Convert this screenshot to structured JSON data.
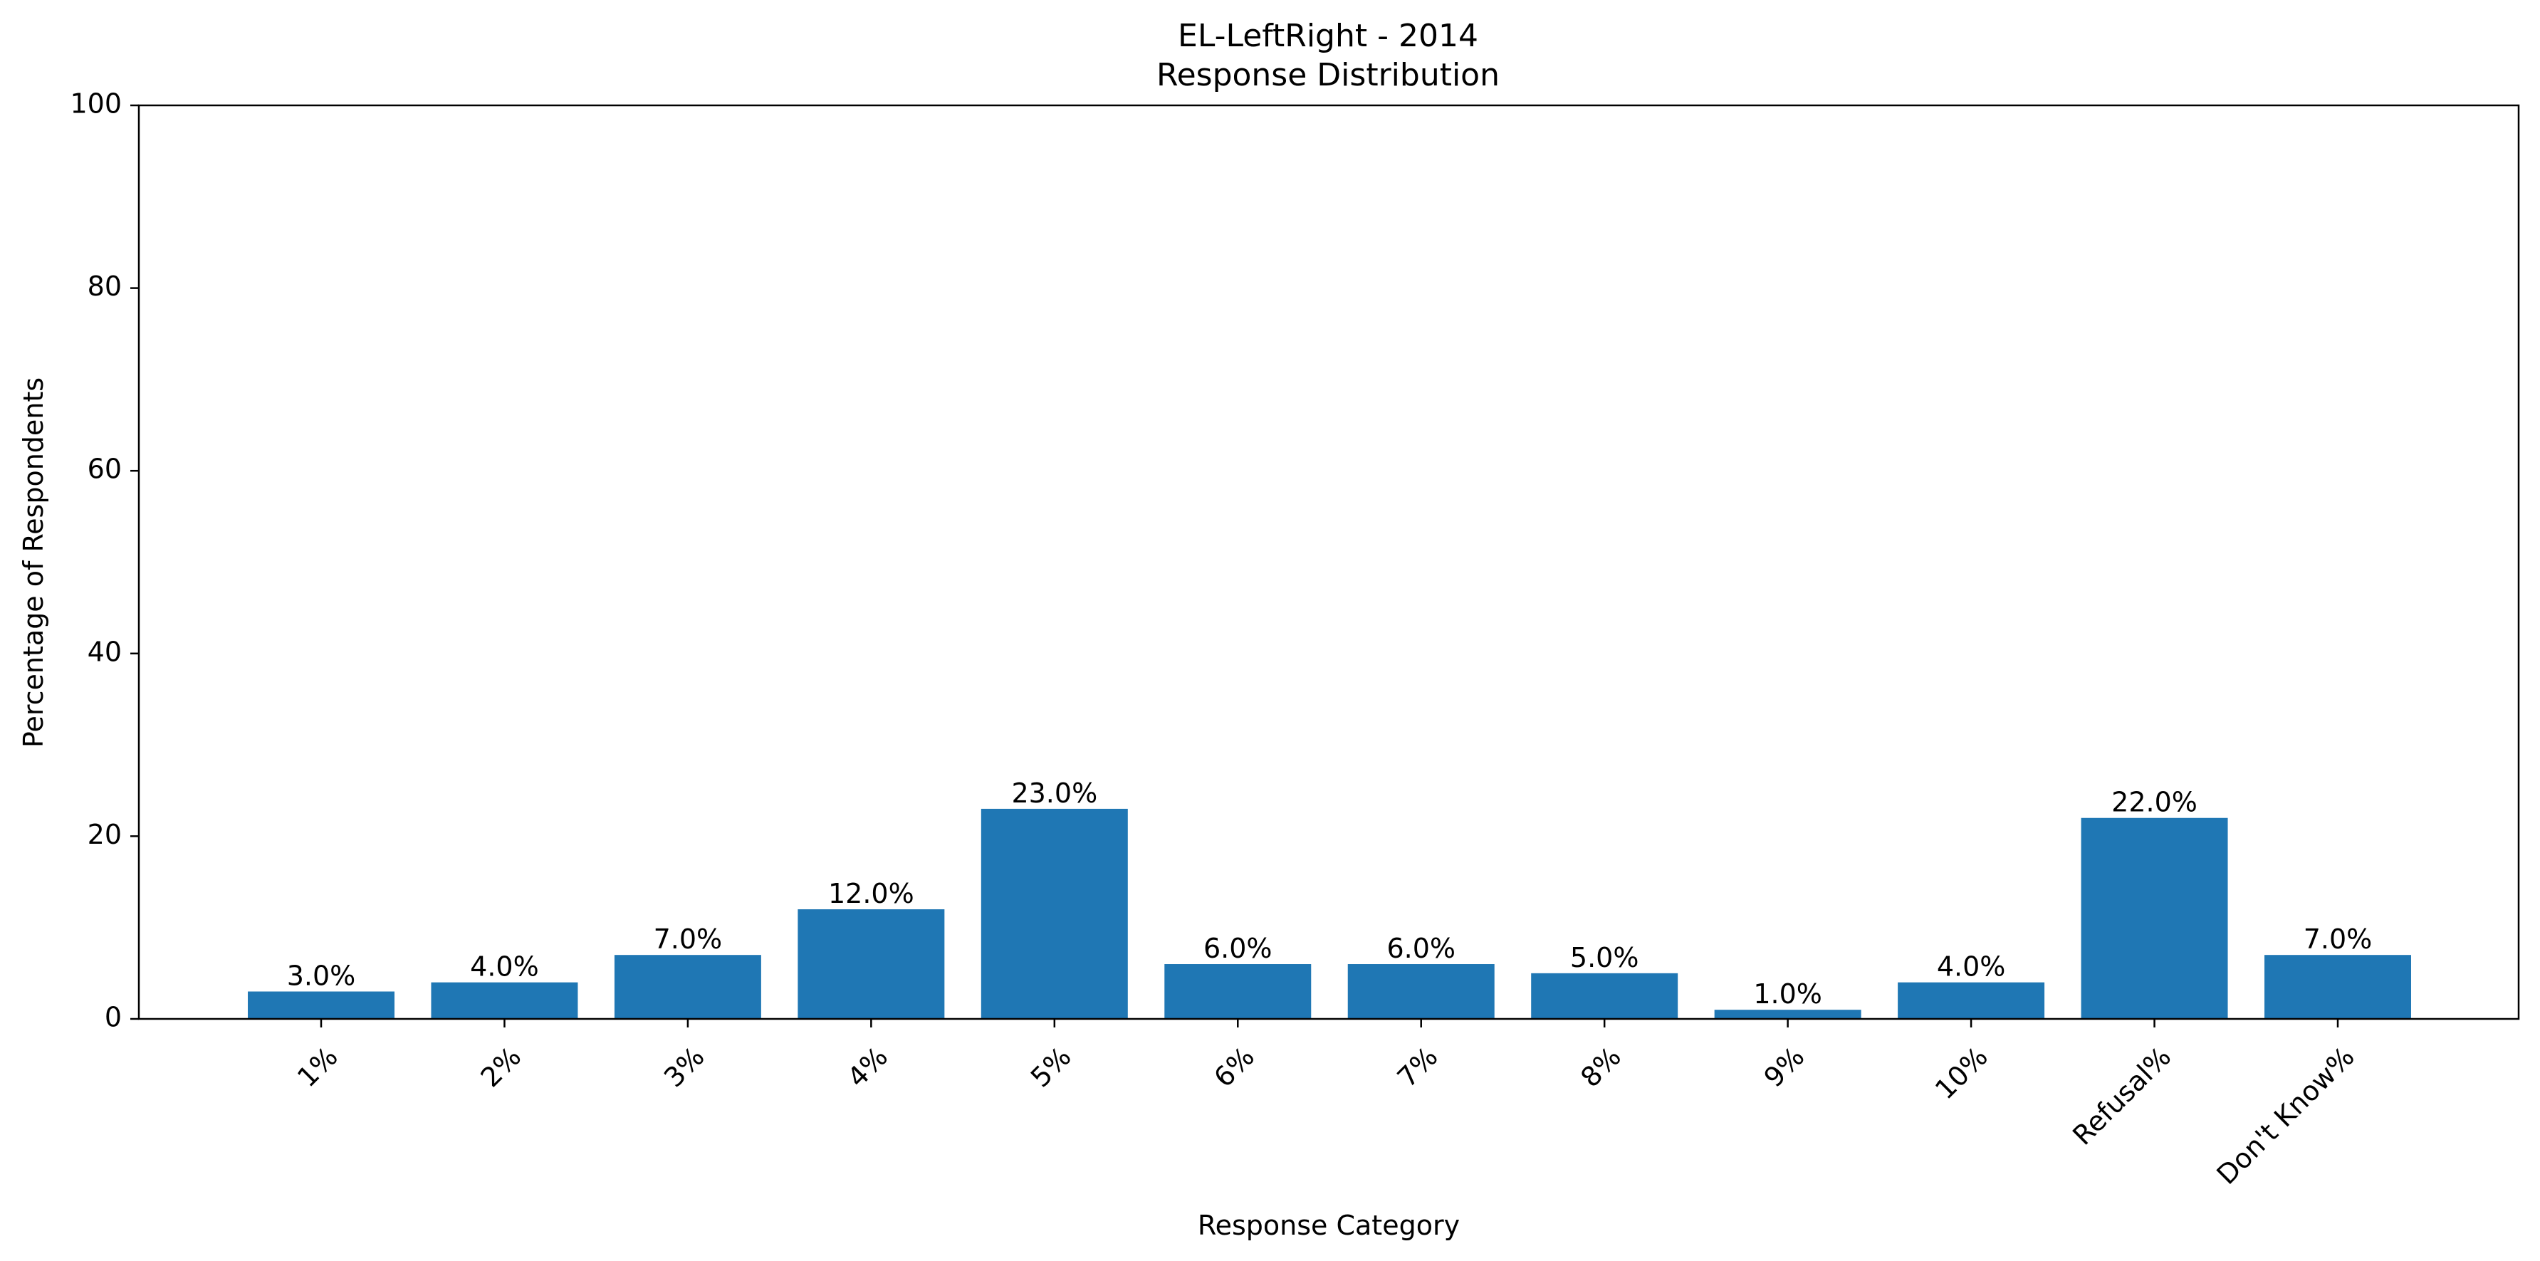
{
  "chart_data": {
    "type": "bar",
    "title": "EL-LeftRight - 2014",
    "subtitle": "Response Distribution",
    "xlabel": "Response Category",
    "ylabel": "Percentage of Respondents",
    "ylim": [
      0,
      100
    ],
    "yticks": [
      0,
      20,
      40,
      60,
      80,
      100
    ],
    "grid": false,
    "bar_color": "#1f77b4",
    "categories": [
      "1%",
      "2%",
      "3%",
      "4%",
      "5%",
      "6%",
      "7%",
      "8%",
      "9%",
      "10%",
      "Refusal%",
      "Don't Know%"
    ],
    "values": [
      3.0,
      4.0,
      7.0,
      12.0,
      23.0,
      6.0,
      6.0,
      5.0,
      1.0,
      4.0,
      22.0,
      7.0
    ],
    "value_labels": [
      "3.0%",
      "4.0%",
      "7.0%",
      "12.0%",
      "23.0%",
      "6.0%",
      "6.0%",
      "5.0%",
      "1.0%",
      "4.0%",
      "22.0%",
      "7.0%"
    ]
  }
}
